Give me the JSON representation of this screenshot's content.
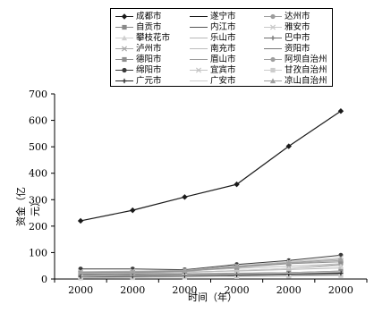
{
  "chart_data": {
    "type": "line",
    "xlabel": "时间（年）",
    "ylabel": "资金（亿元）",
    "categories": [
      "2000",
      "2000",
      "2000",
      "2000",
      "2000",
      "2000"
    ],
    "ylim": [
      0,
      700
    ],
    "yticks": [
      "0",
      "100",
      "200",
      "300",
      "400",
      "500",
      "600",
      "700"
    ],
    "grid": false,
    "legend_position": "top",
    "series": [
      {
        "name": "成都市",
        "values": [
          220,
          260,
          310,
          358,
          502,
          635
        ],
        "color": "#1a1a1a",
        "marker": "diamond"
      },
      {
        "name": "遂宁市",
        "values": [
          12,
          14,
          15,
          18,
          20,
          24
        ],
        "color": "#111111",
        "marker": "none"
      },
      {
        "name": "达州市",
        "values": [
          18,
          20,
          24,
          32,
          40,
          55
        ],
        "color": "#9c9c9c",
        "marker": "circle"
      },
      {
        "name": "自贡市",
        "values": [
          15,
          17,
          19,
          22,
          24,
          30
        ],
        "color": "#8a8a8a",
        "marker": "square"
      },
      {
        "name": "内江市",
        "values": [
          14,
          16,
          18,
          21,
          24,
          28
        ],
        "color": "#555555",
        "marker": "none"
      },
      {
        "name": "雅安市",
        "values": [
          8,
          9,
          11,
          13,
          15,
          18
        ],
        "color": "#c8c8c8",
        "marker": "cross"
      },
      {
        "name": "攀枝花市",
        "values": [
          20,
          22,
          25,
          32,
          40,
          50
        ],
        "color": "#d0d0d0",
        "marker": "triangle"
      },
      {
        "name": "乐山市",
        "values": [
          22,
          24,
          27,
          30,
          36,
          42
        ],
        "color": "#b8b8b8",
        "marker": "none"
      },
      {
        "name": "巴中市",
        "values": [
          6,
          7,
          9,
          12,
          14,
          17
        ],
        "color": "#6e6e6e",
        "marker": "plus"
      },
      {
        "name": "泸州市",
        "values": [
          20,
          23,
          28,
          45,
          60,
          70
        ],
        "color": "#a8a8a8",
        "marker": "cross"
      },
      {
        "name": "南充市",
        "values": [
          25,
          27,
          30,
          40,
          48,
          58
        ],
        "color": "#bcbcbc",
        "marker": "none"
      },
      {
        "name": "资阳市",
        "values": [
          10,
          12,
          14,
          17,
          20,
          24
        ],
        "color": "#7a7a7a",
        "marker": "none"
      },
      {
        "name": "德阳市",
        "values": [
          24,
          25,
          30,
          44,
          58,
          65
        ],
        "color": "#8e8e8e",
        "marker": "square"
      },
      {
        "name": "眉山市",
        "values": [
          12,
          14,
          16,
          20,
          24,
          30
        ],
        "color": "#9a9a9a",
        "marker": "none"
      },
      {
        "name": "阿坝自治州",
        "values": [
          5,
          6,
          8,
          10,
          12,
          14
        ],
        "color": "#9e9e9e",
        "marker": "circle"
      },
      {
        "name": "绵阳市",
        "values": [
          38,
          38,
          35,
          55,
          70,
          90
        ],
        "color": "#3a3a3a",
        "marker": "circle"
      },
      {
        "name": "宜宾市",
        "values": [
          28,
          30,
          33,
          50,
          66,
          80
        ],
        "color": "#c4c4c4",
        "marker": "cross"
      },
      {
        "name": "甘孜自治州",
        "values": [
          4,
          5,
          7,
          9,
          11,
          13
        ],
        "color": "#cccccc",
        "marker": "square"
      },
      {
        "name": "广元市",
        "values": [
          10,
          11,
          13,
          16,
          19,
          22
        ],
        "color": "#222222",
        "marker": "plus"
      },
      {
        "name": "广安市",
        "values": [
          11,
          13,
          15,
          19,
          22,
          27
        ],
        "color": "#cfcfcf",
        "marker": "none"
      },
      {
        "name": "凉山自治州",
        "values": [
          26,
          28,
          32,
          48,
          62,
          75
        ],
        "color": "#a0a0a0",
        "marker": "triangle"
      }
    ]
  }
}
